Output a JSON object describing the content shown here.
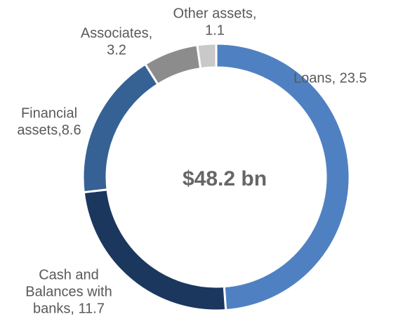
{
  "chart_data": {
    "type": "donut",
    "center_label": "$48.2 bn",
    "labels": [
      [
        "Loans, 23.5"
      ],
      [
        "Cash and",
        "Balances with",
        "banks, 11.7"
      ],
      [
        "Financial",
        "assets,8.6"
      ],
      [
        "Associates,",
        "3.2"
      ],
      [
        "Other assets,",
        "1.1"
      ]
    ],
    "values": [
      23.5,
      11.7,
      8.6,
      3.2,
      1.1
    ],
    "colors": [
      "#4f81c2",
      "#1c375e",
      "#366195",
      "#8c8c8c",
      "#c9c9c9"
    ]
  }
}
